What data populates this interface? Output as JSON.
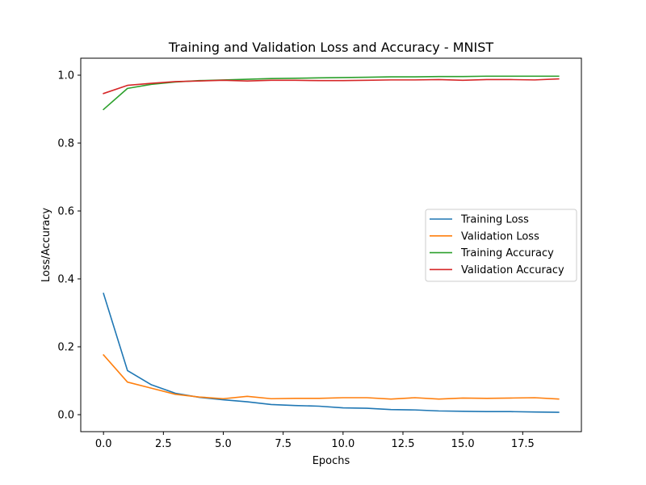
{
  "chart_data": {
    "type": "line",
    "title": "Training and Validation Loss and Accuracy - MNIST",
    "xlabel": "Epochs",
    "ylabel": "Loss/Accuracy",
    "xlim": [
      -0.95,
      19.95
    ],
    "ylim": [
      -0.05,
      1.05
    ],
    "xticks": [
      0.0,
      2.5,
      5.0,
      7.5,
      10.0,
      12.5,
      15.0,
      17.5
    ],
    "xtick_labels": [
      "0.0",
      "2.5",
      "5.0",
      "7.5",
      "10.0",
      "12.5",
      "15.0",
      "17.5"
    ],
    "yticks": [
      0.0,
      0.2,
      0.4,
      0.6,
      0.8,
      1.0
    ],
    "ytick_labels": [
      "0.0",
      "0.2",
      "0.4",
      "0.6",
      "0.8",
      "1.0"
    ],
    "grid": false,
    "legend_position": "center-right",
    "x": [
      0,
      1,
      2,
      3,
      4,
      5,
      6,
      7,
      8,
      9,
      10,
      11,
      12,
      13,
      14,
      15,
      16,
      17,
      18,
      19
    ],
    "series": [
      {
        "name": "Training Loss",
        "color": "#1f77b4",
        "values": [
          0.357,
          0.13,
          0.088,
          0.063,
          0.051,
          0.044,
          0.038,
          0.03,
          0.027,
          0.025,
          0.02,
          0.019,
          0.015,
          0.014,
          0.011,
          0.01,
          0.009,
          0.009,
          0.008,
          0.007
        ]
      },
      {
        "name": "Validation Loss",
        "color": "#ff7f0e",
        "values": [
          0.176,
          0.096,
          0.078,
          0.06,
          0.052,
          0.047,
          0.054,
          0.047,
          0.048,
          0.048,
          0.05,
          0.05,
          0.046,
          0.05,
          0.046,
          0.049,
          0.048,
          0.049,
          0.05,
          0.046
        ]
      },
      {
        "name": "Training Accuracy",
        "color": "#2ca02c",
        "values": [
          0.899,
          0.961,
          0.973,
          0.98,
          0.984,
          0.986,
          0.988,
          0.99,
          0.991,
          0.992,
          0.993,
          0.994,
          0.995,
          0.995,
          0.996,
          0.996,
          0.997,
          0.997,
          0.997,
          0.997
        ]
      },
      {
        "name": "Validation Accuracy",
        "color": "#d62728",
        "values": [
          0.946,
          0.97,
          0.976,
          0.981,
          0.983,
          0.985,
          0.983,
          0.985,
          0.985,
          0.984,
          0.984,
          0.985,
          0.986,
          0.986,
          0.987,
          0.985,
          0.987,
          0.987,
          0.986,
          0.989
        ]
      }
    ]
  }
}
